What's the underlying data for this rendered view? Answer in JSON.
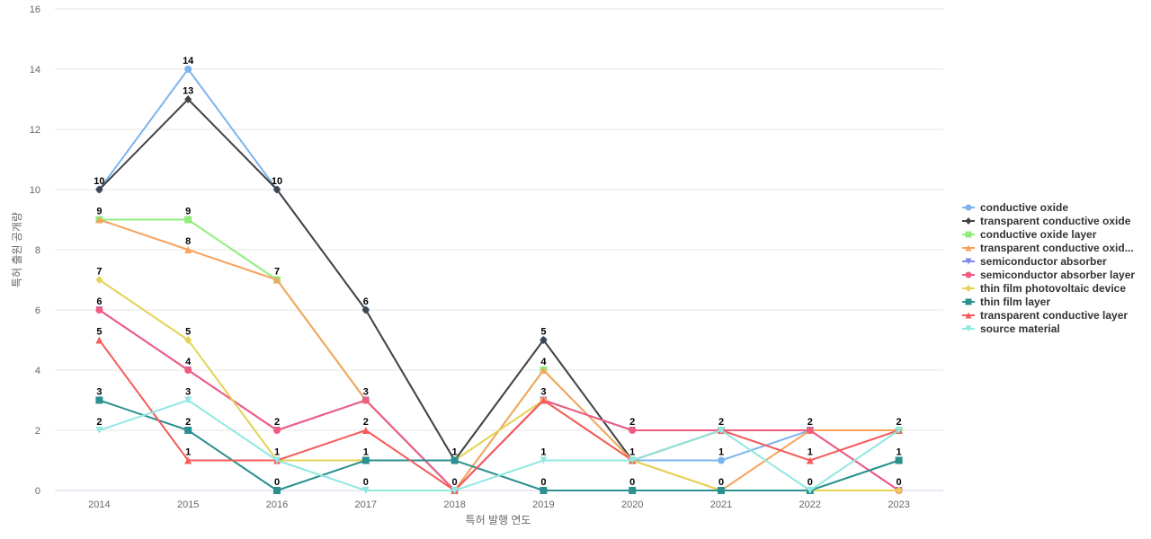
{
  "chart_data": {
    "type": "line",
    "title": "",
    "xlabel": "특허 발행 연도",
    "ylabel": "특허 출원 공개량",
    "x": [
      "2014",
      "2015",
      "2016",
      "2017",
      "2018",
      "2019",
      "2020",
      "2021",
      "2022",
      "2023"
    ],
    "ylim": [
      0,
      16
    ],
    "yticks": [
      0,
      2,
      4,
      6,
      8,
      10,
      12,
      14,
      16
    ],
    "grid": true,
    "legend_position": "right",
    "series": [
      {
        "name": "conductive oxide",
        "legend_label": "conductive oxide",
        "color": "#7cb5ec",
        "marker": "circle",
        "values": [
          10,
          14,
          10,
          6,
          1,
          5,
          1,
          1,
          2,
          2
        ]
      },
      {
        "name": "transparent conductive oxide",
        "legend_label": "transparent conductive oxide",
        "color": "#434348",
        "marker": "diamond",
        "values": [
          10,
          13,
          10,
          6,
          1,
          5,
          1,
          2,
          2,
          2
        ]
      },
      {
        "name": "conductive oxide layer",
        "legend_label": "conductive oxide layer",
        "color": "#90ed7d",
        "marker": "square",
        "values": [
          9,
          9,
          7,
          3,
          0,
          4,
          1,
          2,
          2,
          2
        ]
      },
      {
        "name": "transparent conductive oxide layer",
        "legend_label": "transparent conductive oxid...",
        "color": "#f7a35c",
        "marker": "triangle",
        "values": [
          9,
          8,
          7,
          3,
          0,
          4,
          1,
          0,
          2,
          2
        ]
      },
      {
        "name": "semiconductor absorber",
        "legend_label": "semiconductor absorber",
        "color": "#8085e9",
        "marker": "triangle-down",
        "values": [
          6,
          4,
          2,
          3,
          0,
          3,
          2,
          2,
          2,
          0
        ]
      },
      {
        "name": "semiconductor absorber layer",
        "legend_label": "semiconductor absorber layer",
        "color": "#f15c80",
        "marker": "circle",
        "values": [
          6,
          4,
          2,
          3,
          0,
          3,
          2,
          2,
          2,
          0
        ]
      },
      {
        "name": "thin film photovoltaic device",
        "legend_label": "thin film photovoltaic device",
        "color": "#e4d354",
        "marker": "diamond",
        "values": [
          7,
          5,
          1,
          1,
          1,
          3,
          1,
          0,
          0,
          0
        ]
      },
      {
        "name": "thin film layer",
        "legend_label": "thin film layer",
        "color": "#2b908f",
        "marker": "square",
        "values": [
          3,
          2,
          0,
          1,
          1,
          0,
          0,
          0,
          0,
          1
        ]
      },
      {
        "name": "transparent conductive layer",
        "legend_label": "transparent conductive layer",
        "color": "#f45b5b",
        "marker": "triangle",
        "values": [
          5,
          1,
          1,
          2,
          0,
          3,
          1,
          2,
          1,
          2
        ]
      },
      {
        "name": "source material",
        "legend_label": "source material",
        "color": "#91e8e1",
        "marker": "triangle-down",
        "values": [
          2,
          3,
          1,
          0,
          0,
          1,
          1,
          2,
          0,
          2
        ]
      }
    ],
    "data_labels": [
      {
        "x": "2014",
        "values": [
          10,
          9,
          7,
          6,
          5,
          3,
          2
        ]
      },
      {
        "x": "2015",
        "values": [
          14,
          13,
          9,
          8,
          5,
          4,
          3,
          2,
          1
        ]
      },
      {
        "x": "2016",
        "values": [
          10,
          7,
          2,
          1,
          0
        ]
      },
      {
        "x": "2017",
        "values": [
          6,
          3,
          2,
          1,
          0
        ]
      },
      {
        "x": "2018",
        "values": [
          1,
          0
        ]
      },
      {
        "x": "2019",
        "values": [
          5,
          4,
          3,
          1,
          0
        ]
      },
      {
        "x": "2020",
        "values": [
          2,
          1,
          0
        ]
      },
      {
        "x": "2021",
        "values": [
          2,
          1,
          0
        ]
      },
      {
        "x": "2022",
        "values": [
          2,
          1,
          0
        ]
      },
      {
        "x": "2023",
        "values": [
          2,
          1,
          0
        ]
      }
    ]
  }
}
